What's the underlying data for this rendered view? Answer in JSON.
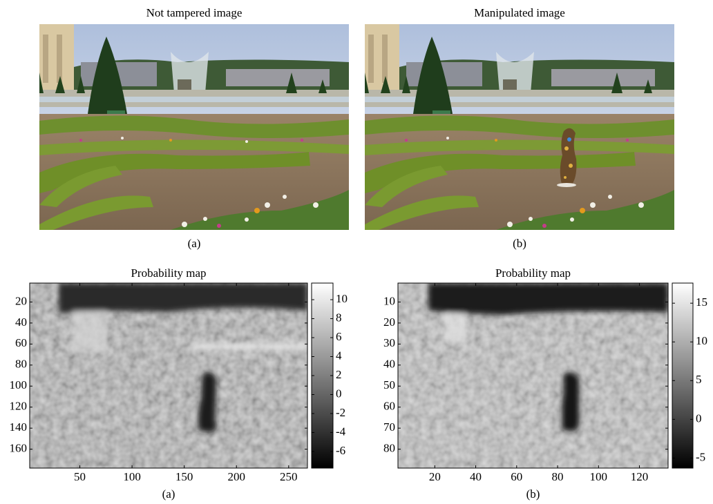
{
  "panels": [
    {
      "title": "Not tampered image",
      "caption": "(a)"
    },
    {
      "title": "Manipulated image",
      "caption": "(b)"
    }
  ],
  "chart_data": [
    {
      "type": "heatmap",
      "title": "Probability map",
      "caption": "(a)",
      "xlim": [
        2,
        268
      ],
      "xticks": [
        50,
        100,
        150,
        200,
        250
      ],
      "ylim": [
        2,
        178
      ],
      "yticks": [
        20,
        40,
        60,
        80,
        100,
        120,
        140,
        160
      ],
      "y_reversed": true,
      "colorbar_lim": [
        -7.75,
        11.75
      ],
      "colorbar_ticks": [
        -6,
        -4,
        -2,
        0,
        2,
        4,
        6,
        8,
        10
      ]
    },
    {
      "type": "heatmap",
      "title": "Probability map",
      "caption": "(b)",
      "xlim": [
        2,
        134
      ],
      "xticks": [
        20,
        40,
        60,
        80,
        100,
        120
      ],
      "ylim": [
        1,
        89
      ],
      "yticks": [
        10,
        20,
        30,
        40,
        50,
        60,
        70,
        80
      ],
      "y_reversed": true,
      "colorbar_lim": [
        -6.3,
        17.6
      ],
      "colorbar_ticks": [
        -5,
        0,
        5,
        10,
        15
      ]
    }
  ]
}
